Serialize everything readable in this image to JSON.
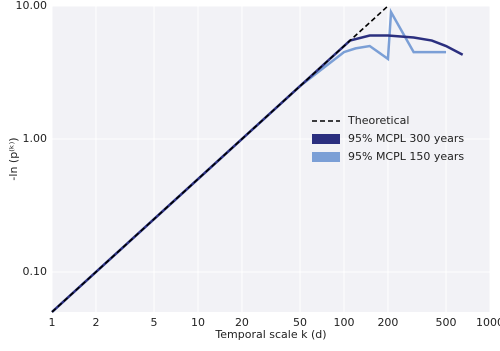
{
  "chart_data": {
    "type": "line",
    "x_label": "Temporal scale k (d)",
    "y_label": "-ln (p⁽ᵏ⁾)",
    "xlog": true,
    "ylog": true,
    "grid": true,
    "xlim": [
      1,
      1000
    ],
    "ylim": [
      0.05,
      10
    ],
    "xticks": [
      1,
      2,
      5,
      10,
      20,
      50,
      100,
      200,
      500,
      1000
    ],
    "yticks": [
      {
        "value": 0.1,
        "label": "0.10"
      },
      {
        "value": 1,
        "label": "1.00"
      },
      {
        "value": 10,
        "label": "10.00"
      }
    ],
    "legend": "right",
    "series": [
      {
        "name": "Theoretical",
        "color": "#000000",
        "style": "dashed",
        "x": [
          1,
          200
        ],
        "values": [
          0.05,
          10
        ]
      },
      {
        "name": "95% MCPL 300 years",
        "color": "#2b2f7f",
        "style": "solid",
        "x": [
          1,
          10,
          50,
          80,
          100,
          110,
          150,
          200,
          300,
          400,
          500,
          650
        ],
        "values": [
          0.05,
          0.5,
          2.5,
          4,
          5,
          5.5,
          6,
          6,
          5.8,
          5.5,
          5,
          4.3
        ]
      },
      {
        "name": "95% MCPL 150 years",
        "color": "#7b9fd6",
        "style": "solid",
        "x": [
          1,
          10,
          50,
          100,
          120,
          150,
          200,
          210,
          300,
          500
        ],
        "values": [
          0.05,
          0.5,
          2.5,
          4.5,
          4.8,
          5,
          4,
          9,
          4.5,
          4.5
        ]
      }
    ]
  }
}
